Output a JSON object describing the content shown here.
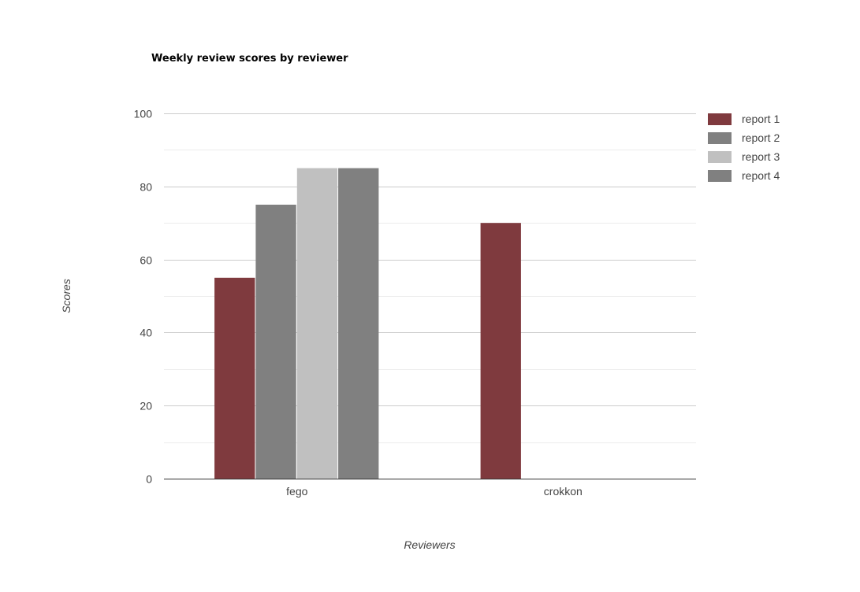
{
  "chart_data": {
    "type": "bar",
    "title": "Weekly review scores by reviewer",
    "xlabel": "Reviewers",
    "ylabel": "Scores",
    "categories": [
      "fego",
      "crokkon"
    ],
    "ylim": [
      0,
      100
    ],
    "yticks": [
      0,
      20,
      40,
      60,
      80,
      100
    ],
    "minor_grid": true,
    "legend_position": "right",
    "series": [
      {
        "name": "report 1",
        "color": "#7f3a3e",
        "values": [
          55,
          70
        ]
      },
      {
        "name": "report 2",
        "color": "#808080",
        "values": [
          75,
          0
        ]
      },
      {
        "name": "report 3",
        "color": "#c0c0c0",
        "values": [
          85,
          0
        ]
      },
      {
        "name": "report 4",
        "color": "#808080",
        "values": [
          85,
          0
        ]
      }
    ]
  }
}
